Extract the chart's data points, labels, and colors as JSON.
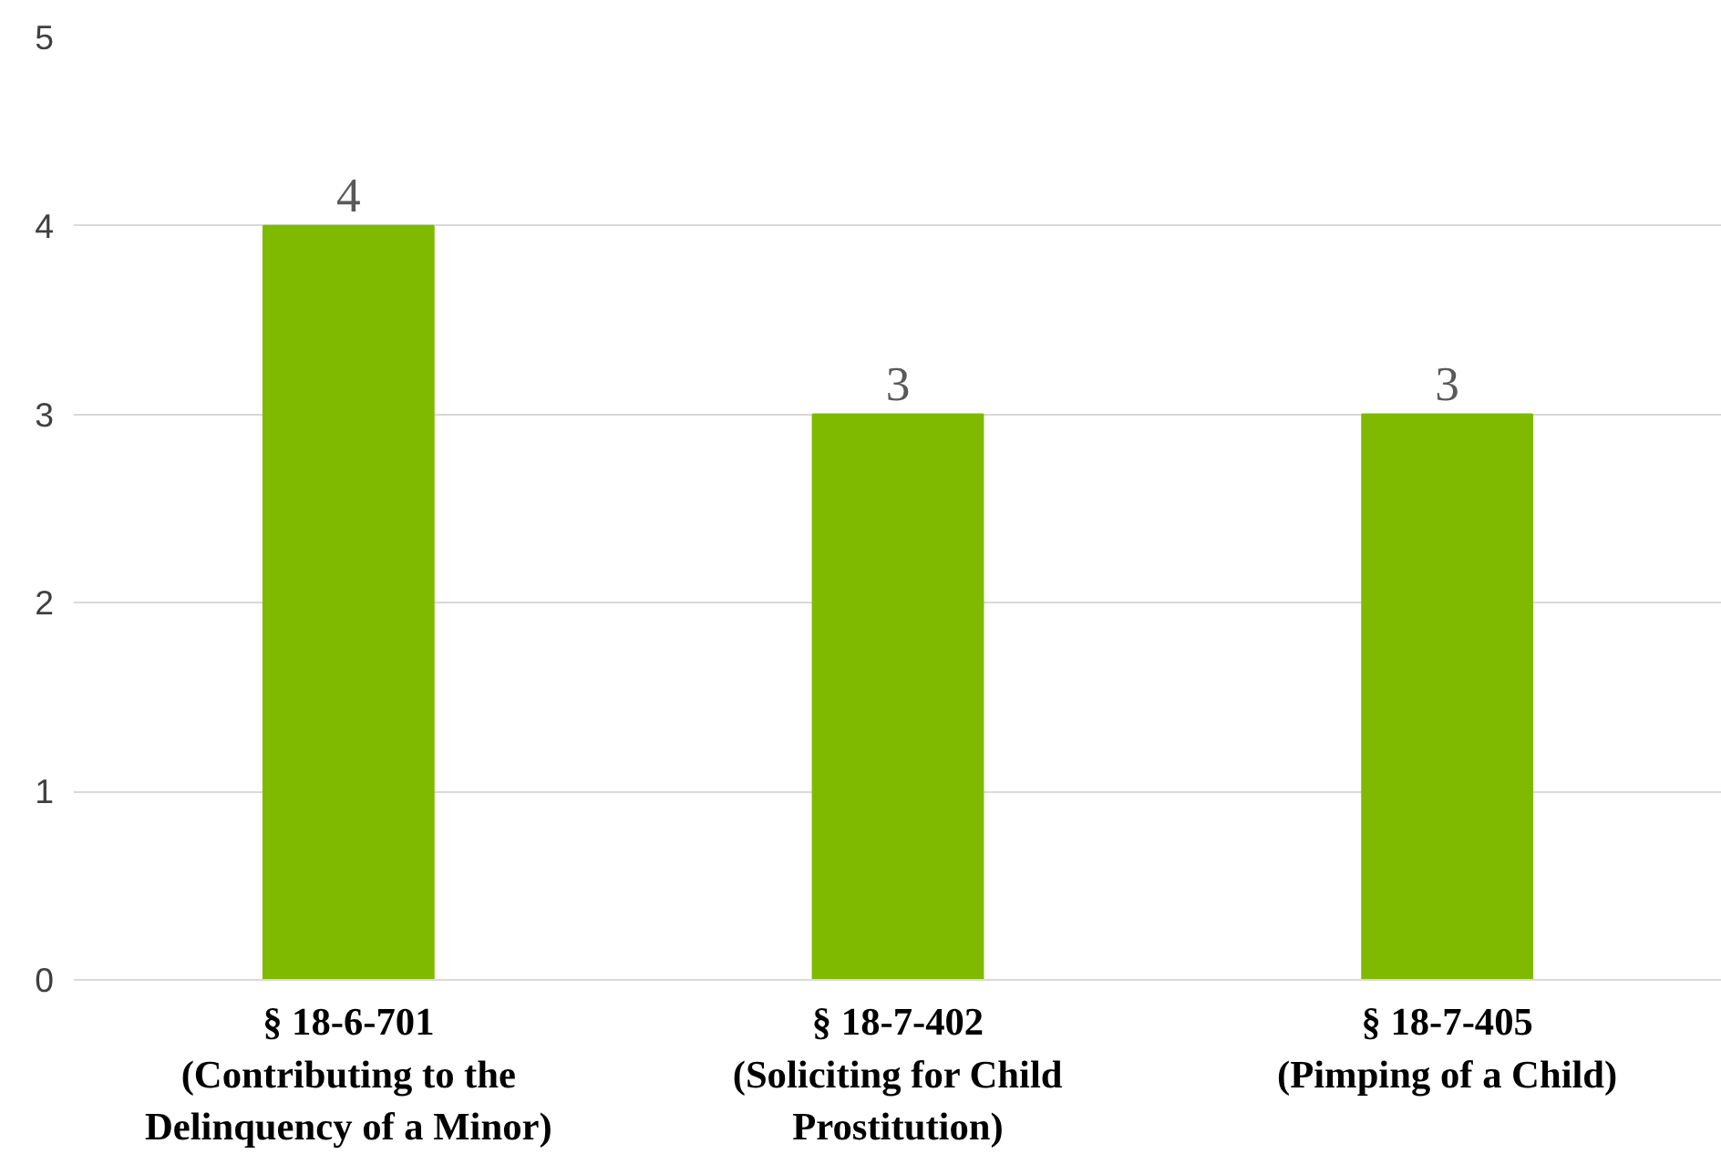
{
  "chart_data": {
    "type": "bar",
    "categories": [
      "§ 18-6-701\n(Contributing to the\nDelinquency of a Minor)",
      "§ 18-7-402\n(Soliciting for Child\nProstitution)",
      "§ 18-7-405\n(Pimping of a Child)"
    ],
    "values": [
      4,
      3,
      3
    ],
    "color": "#7fba00",
    "ylim": [
      0,
      5
    ],
    "yticks": [
      0,
      1,
      2,
      3,
      4,
      5
    ],
    "grid": "y",
    "data_labels": true
  }
}
